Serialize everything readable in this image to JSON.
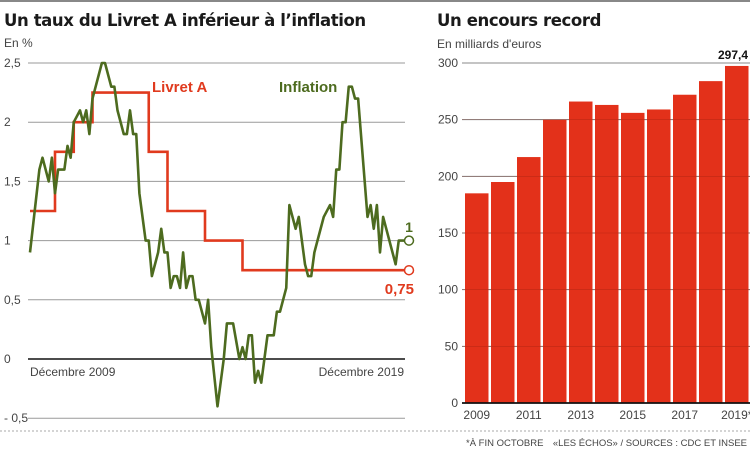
{
  "colors": {
    "livret_a": "#e03a1e",
    "inflation": "#4d6b1f",
    "bars": "#e3311a"
  },
  "chart_data": [
    {
      "type": "line",
      "title": "Un taux du Livret A inférieur à l’inflation",
      "subtitle": "En %",
      "ylim": [
        -0.5,
        2.5
      ],
      "yticks": [
        "2,5",
        "2",
        "1,5",
        "1",
        "0,5",
        "0",
        "- 0,5"
      ],
      "ytick_values": [
        2.5,
        2,
        1.5,
        1,
        0.5,
        0,
        -0.5
      ],
      "xlim": [
        "2009-12",
        "2019-12"
      ],
      "xlabels": [
        "Décembre 2009",
        "Décembre 2019"
      ],
      "grid": true,
      "series": [
        {
          "name": "Livret A",
          "step": true,
          "end_label": "0,75",
          "points": [
            [
              "2009-12",
              1.25
            ],
            [
              "2010-08",
              1.75
            ],
            [
              "2011-02",
              2.0
            ],
            [
              "2011-08",
              2.25
            ],
            [
              "2013-02",
              1.75
            ],
            [
              "2013-08",
              1.25
            ],
            [
              "2014-08",
              1.0
            ],
            [
              "2015-08",
              0.75
            ],
            [
              "2019-12",
              0.75
            ]
          ]
        },
        {
          "name": "Inflation",
          "end_label": "1",
          "points": [
            [
              "2009-12",
              0.9
            ],
            [
              "2010-03",
              1.6
            ],
            [
              "2010-04",
              1.7
            ],
            [
              "2010-06",
              1.5
            ],
            [
              "2010-07",
              1.7
            ],
            [
              "2010-08",
              1.4
            ],
            [
              "2010-09",
              1.6
            ],
            [
              "2010-11",
              1.6
            ],
            [
              "2010-12",
              1.8
            ],
            [
              "2011-01",
              1.7
            ],
            [
              "2011-02",
              2.0
            ],
            [
              "2011-04",
              2.1
            ],
            [
              "2011-05",
              2.0
            ],
            [
              "2011-06",
              2.1
            ],
            [
              "2011-07",
              1.9
            ],
            [
              "2011-08",
              2.2
            ],
            [
              "2011-09",
              2.3
            ],
            [
              "2011-11",
              2.5
            ],
            [
              "2011-12",
              2.5
            ],
            [
              "2012-02",
              2.3
            ],
            [
              "2012-03",
              2.3
            ],
            [
              "2012-04",
              2.1
            ],
            [
              "2012-06",
              1.9
            ],
            [
              "2012-07",
              1.9
            ],
            [
              "2012-08",
              2.1
            ],
            [
              "2012-09",
              1.9
            ],
            [
              "2012-10",
              1.9
            ],
            [
              "2012-11",
              1.4
            ],
            [
              "2012-12",
              1.2
            ],
            [
              "2013-01",
              1.0
            ],
            [
              "2013-02",
              1.0
            ],
            [
              "2013-03",
              0.7
            ],
            [
              "2013-05",
              0.9
            ],
            [
              "2013-06",
              1.1
            ],
            [
              "2013-07",
              0.9
            ],
            [
              "2013-08",
              0.9
            ],
            [
              "2013-09",
              0.6
            ],
            [
              "2013-10",
              0.7
            ],
            [
              "2013-11",
              0.7
            ],
            [
              "2013-12",
              0.6
            ],
            [
              "2014-01",
              0.9
            ],
            [
              "2014-02",
              0.6
            ],
            [
              "2014-03",
              0.7
            ],
            [
              "2014-04",
              0.7
            ],
            [
              "2014-05",
              0.5
            ],
            [
              "2014-06",
              0.5
            ],
            [
              "2014-08",
              0.3
            ],
            [
              "2014-09",
              0.5
            ],
            [
              "2014-10",
              0.1
            ],
            [
              "2014-12",
              -0.4
            ],
            [
              "2015-02",
              0.0
            ],
            [
              "2015-03",
              0.3
            ],
            [
              "2015-05",
              0.3
            ],
            [
              "2015-07",
              0.0
            ],
            [
              "2015-08",
              0.1
            ],
            [
              "2015-09",
              0.0
            ],
            [
              "2015-10",
              0.2
            ],
            [
              "2015-11",
              0.2
            ],
            [
              "2015-12",
              -0.2
            ],
            [
              "2016-01",
              -0.1
            ],
            [
              "2016-02",
              -0.2
            ],
            [
              "2016-04",
              0.2
            ],
            [
              "2016-06",
              0.2
            ],
            [
              "2016-07",
              0.4
            ],
            [
              "2016-08",
              0.4
            ],
            [
              "2016-10",
              0.6
            ],
            [
              "2016-11",
              1.3
            ],
            [
              "2016-12",
              1.2
            ],
            [
              "2017-01",
              1.1
            ],
            [
              "2017-02",
              1.2
            ],
            [
              "2017-04",
              0.8
            ],
            [
              "2017-05",
              0.7
            ],
            [
              "2017-06",
              0.7
            ],
            [
              "2017-07",
              0.9
            ],
            [
              "2017-08",
              1.0
            ],
            [
              "2017-09",
              1.1
            ],
            [
              "2017-10",
              1.2
            ],
            [
              "2017-12",
              1.3
            ],
            [
              "2018-01",
              1.2
            ],
            [
              "2018-02",
              1.6
            ],
            [
              "2018-03",
              1.6
            ],
            [
              "2018-04",
              2.0
            ],
            [
              "2018-05",
              2.0
            ],
            [
              "2018-06",
              2.3
            ],
            [
              "2018-07",
              2.3
            ],
            [
              "2018-08",
              2.2
            ],
            [
              "2018-09",
              2.2
            ],
            [
              "2018-12",
              1.2
            ],
            [
              "2019-01",
              1.3
            ],
            [
              "2019-02",
              1.1
            ],
            [
              "2019-03",
              1.3
            ],
            [
              "2019-04",
              0.9
            ],
            [
              "2019-05",
              1.2
            ],
            [
              "2019-09",
              0.8
            ],
            [
              "2019-10",
              1.0
            ],
            [
              "2019-12",
              1.0
            ]
          ]
        }
      ]
    },
    {
      "type": "bar",
      "title": "Un encours record",
      "subtitle": "En milliards d'euros",
      "categories": [
        "2009",
        "2010",
        "2011",
        "2012",
        "2013",
        "2014",
        "2015",
        "2016",
        "2017",
        "2018",
        "2019*"
      ],
      "xtick_labels": [
        "2009",
        "2011",
        "2013",
        "2015",
        "2017",
        "2019*"
      ],
      "values": [
        185,
        195,
        217,
        250,
        266,
        263,
        256,
        259,
        272,
        284,
        297.4
      ],
      "data_label": "297,4",
      "ylim": [
        0,
        300
      ],
      "yticks": [
        "300",
        "250",
        "200",
        "150",
        "100",
        "50",
        "0"
      ],
      "ytick_values": [
        300,
        250,
        200,
        150,
        100,
        50,
        0
      ],
      "grid": true
    }
  ],
  "footer": {
    "note": "*À FIN OCTOBRE",
    "source": "«LES ÉCHOS» / SOURCES : CDC ET INSEE"
  }
}
